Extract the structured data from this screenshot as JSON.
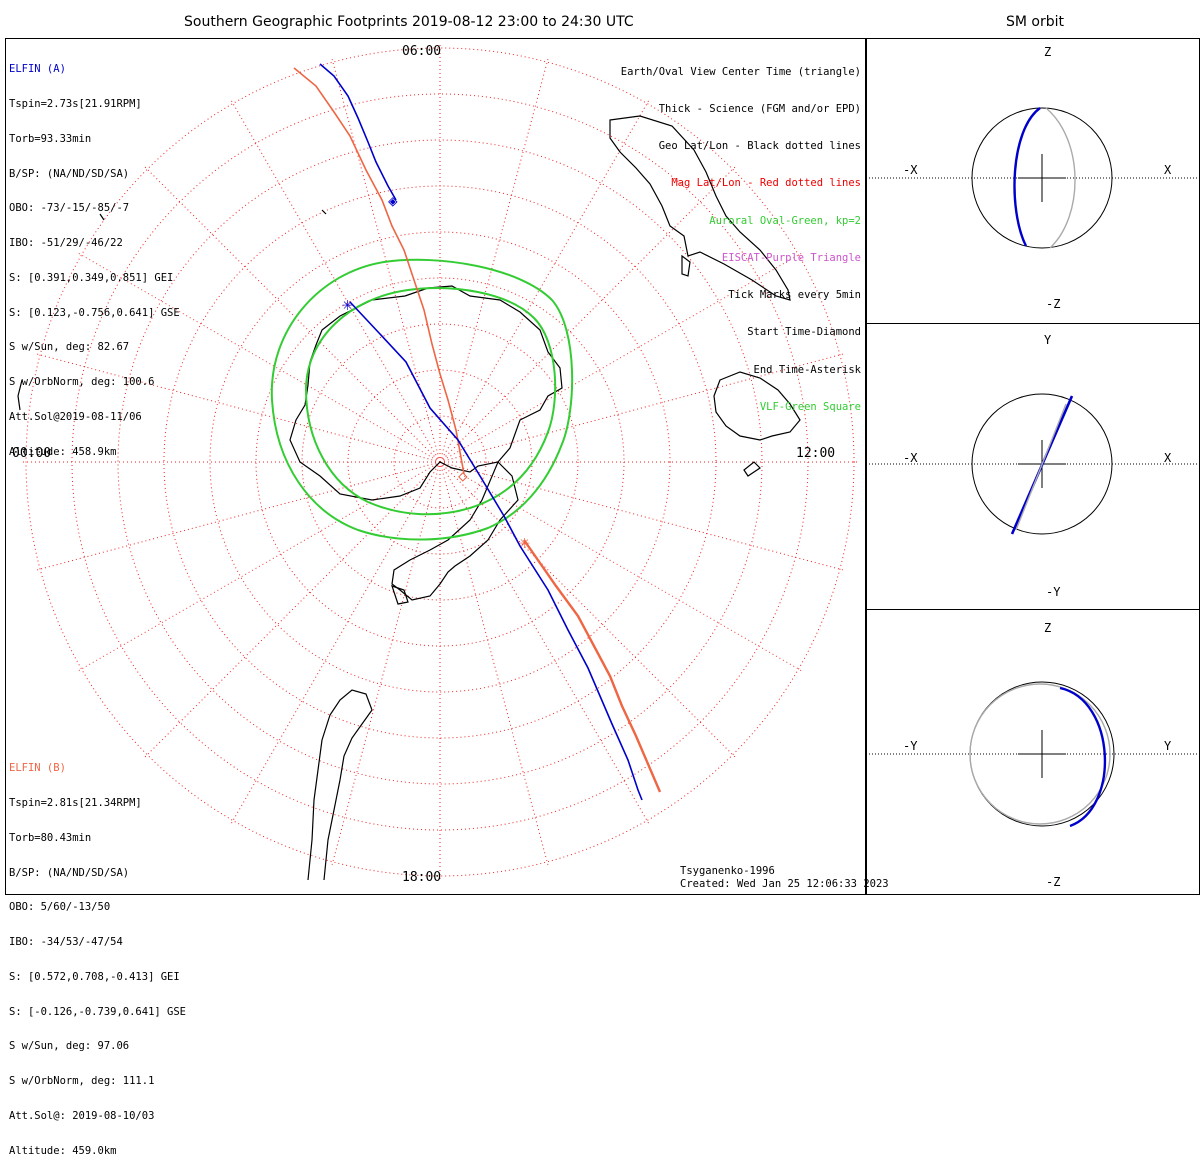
{
  "header": {
    "title": "Southern Geographic Footprints 2019-08-12 23:00 to 24:30 UTC",
    "side_title": "SM orbit"
  },
  "map": {
    "mlt_labels": {
      "top": "06:00",
      "left": "00:00",
      "right": "12:00",
      "bottom": "18:00"
    },
    "footer_model": "Tsyganenko-1996",
    "footer_created": "Created: Wed Jan 25 12:06:33 2023"
  },
  "elfin_a": {
    "lines": [
      "ELFIN (A)",
      "Tspin=2.73s[21.91RPM]",
      "Torb=93.33min",
      "B/SP: (NA/ND/SD/SA)",
      "OBO: -73/-15/-85/-7",
      "IBO: -51/29/-46/22",
      "S: [0.391,0.349,0.851] GEI",
      "S: [0.123,-0.756,0.641] GSE",
      "S w/Sun, deg: 82.67",
      "S w/OrbNorm, deg: 100.6",
      "Att.Sol@2019-08-11/06",
      "Altitude: 458.9km"
    ],
    "color": "#0000cc"
  },
  "elfin_b": {
    "lines": [
      "ELFIN (B)",
      "Tspin=2.81s[21.34RPM]",
      "Torb=80.43min",
      "B/SP: (NA/ND/SD/SA)",
      "OBO: 5/60/-13/50",
      "IBO: -34/53/-47/54",
      "S: [0.572,0.708,-0.413] GEI",
      "S: [-0.126,-0.739,0.641] GSE",
      "S w/Sun, deg: 97.06",
      "S w/OrbNorm, deg: 111.1",
      "Att.Sol@: 2019-08-10/03",
      "Altitude: 459.0km"
    ],
    "color": "#ee6644"
  },
  "legend": {
    "items": [
      {
        "text": "Earth/Oval View Center Time (triangle)",
        "color": "#000000"
      },
      {
        "text": "Thick - Science (FGM and/or EPD)",
        "color": "#000000"
      },
      {
        "text": "Geo Lat/Lon - Black dotted lines",
        "color": "#000000"
      },
      {
        "text": "Mag Lat/Lon - Red dotted lines",
        "color": "#ee0000"
      },
      {
        "text": "Auroral Oval-Green, kp=2",
        "color": "#33cc33"
      },
      {
        "text": "EISCAT-Purple Triangle",
        "color": "#cc55cc"
      },
      {
        "text": "Tick Marks every 5min",
        "color": "#000000"
      },
      {
        "text": "Start Time-Diamond",
        "color": "#000000"
      },
      {
        "text": "End Time-Asterisk",
        "color": "#000000"
      },
      {
        "text": "VLF-Green Square",
        "color": "#33cc33"
      }
    ]
  },
  "sm_panels": [
    {
      "top": "Z",
      "bottom": "-Z",
      "left": "-X",
      "right": "X"
    },
    {
      "top": "Y",
      "bottom": "-Y",
      "left": "-X",
      "right": "X"
    },
    {
      "top": "Z",
      "bottom": "-Z",
      "left": "-Y",
      "right": "Y"
    }
  ]
}
